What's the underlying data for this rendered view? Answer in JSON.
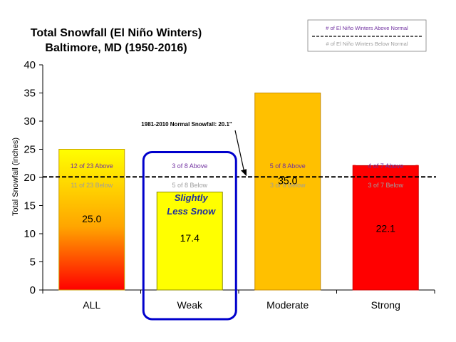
{
  "chart_data": {
    "type": "bar",
    "title": [
      "Total Snowfall (El Niño Winters)",
      "Baltimore, MD (1950-2016)"
    ],
    "ylabel": "Total Snowfall (inches)",
    "ylim": [
      0,
      40
    ],
    "yticks": [
      "0",
      "5",
      "10",
      "15",
      "20",
      "25",
      "30",
      "35",
      "40"
    ],
    "categories": [
      "ALL",
      "Weak",
      "Moderate",
      "Strong"
    ],
    "values": [
      25.0,
      17.4,
      35.0,
      22.1
    ],
    "value_labels": [
      "25.0",
      "17.4",
      "35.0",
      "22.1"
    ],
    "above_labels": [
      "12 of 23 Above",
      "3 of 8 Above",
      "5 of 8 Above",
      "4 of 7 Above"
    ],
    "below_labels": [
      "11 of 23 Below",
      "5 of 8 Below",
      "3 of 8 Below",
      "3 of 7 Below"
    ],
    "normal_line": {
      "value": 20.1,
      "label": "1981-2010  Normal Snowfall: 20.1\""
    },
    "legend": {
      "above": "# of El Niño Winters Above Normal",
      "below": "# of El Niño Winters Below Normal",
      "placement": "top-right"
    },
    "annotation": [
      "Slightly",
      "Less Snow"
    ],
    "colors": {
      "all_top": "#ffff00",
      "all_bottom": "#ff0000",
      "weak": "#ffff00",
      "moderate": "#ffc000",
      "strong": "#ff0000",
      "above_text": "#7030a0",
      "below_text": "#9e9e9e",
      "highlight": "#0000cc",
      "annotation": "#1f2f9f"
    }
  }
}
